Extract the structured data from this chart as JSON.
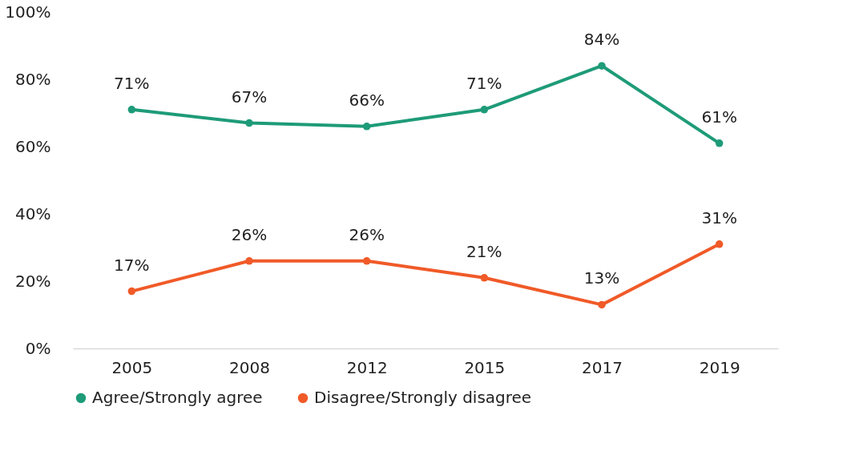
{
  "chart_data": {
    "type": "line",
    "categories": [
      "2005",
      "2008",
      "2012",
      "2015",
      "2017",
      "2019"
    ],
    "series": [
      {
        "name": "Agree/Strongly agree",
        "color": "#1e9b78",
        "values": [
          71,
          67,
          66,
          71,
          84,
          61
        ],
        "value_labels": [
          "71%",
          "67%",
          "66%",
          "71%",
          "84%",
          "61%"
        ]
      },
      {
        "name": "Disagree/Strongly disagree",
        "color": "#f05a28",
        "values": [
          17,
          26,
          26,
          21,
          13,
          31
        ],
        "value_labels": [
          "17%",
          "26%",
          "26%",
          "21%",
          "13%",
          "31%"
        ]
      }
    ],
    "ylim": [
      0,
      100
    ],
    "yticks": [
      {
        "value": 0,
        "label": "0%"
      },
      {
        "value": 20,
        "label": "20%"
      },
      {
        "value": 40,
        "label": "40%"
      },
      {
        "value": 60,
        "label": "60%"
      },
      {
        "value": 80,
        "label": "80%"
      },
      {
        "value": 100,
        "label": "100%"
      }
    ],
    "grid": false,
    "legend": "bottom",
    "marker": "circle",
    "line_style": "solid"
  }
}
